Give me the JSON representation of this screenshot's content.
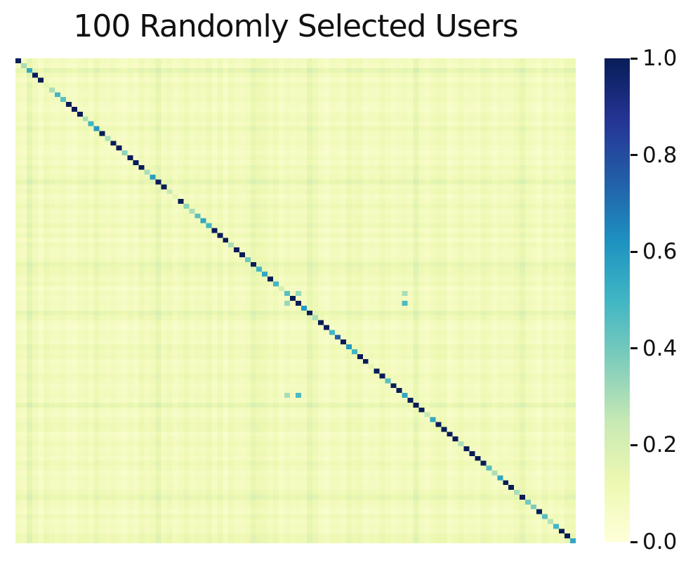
{
  "figure": {
    "background_color": "#ffffff"
  },
  "chart_data": {
    "type": "heatmap",
    "title": "100 Randomly Selected Users",
    "n": 100,
    "value_range": [
      0.0,
      1.0
    ],
    "colormap": "YlGnBu",
    "colormap_anchors": [
      [
        0.0,
        "#ffffd9"
      ],
      [
        0.125,
        "#edf8b1"
      ],
      [
        0.25,
        "#c7e9b4"
      ],
      [
        0.375,
        "#7fcdbb"
      ],
      [
        0.5,
        "#41b6c4"
      ],
      [
        0.625,
        "#1d91c0"
      ],
      [
        0.75,
        "#225ea8"
      ],
      [
        0.875,
        "#253494"
      ],
      [
        1.0,
        "#081d58"
      ]
    ],
    "colorbar": {
      "tick_labels": [
        "1.0",
        "0.8",
        "0.6",
        "0.4",
        "0.2",
        "0.0"
      ],
      "tick_values": [
        1.0,
        0.8,
        0.6,
        0.4,
        0.2,
        0.0
      ],
      "position": "right"
    },
    "matrix_model": {
      "rule": "value(i,j) = diagonal[i] if i==j else clamp01(base[i]+base[j]); extra_points override",
      "diagonal": [
        1.0,
        0.3,
        0.55,
        1.0,
        1.0,
        0.15,
        0.3,
        0.5,
        0.45,
        1.0,
        1.0,
        1.0,
        0.3,
        0.5,
        0.6,
        1.0,
        0.3,
        1.0,
        1.0,
        0.35,
        1.0,
        1.0,
        1.0,
        0.3,
        0.58,
        1.0,
        1.0,
        0.25,
        0.15,
        1.0,
        0.35,
        0.3,
        0.45,
        0.55,
        0.5,
        1.0,
        1.0,
        1.0,
        0.3,
        1.0,
        1.0,
        0.4,
        1.0,
        0.5,
        0.55,
        1.0,
        0.5,
        0.2,
        0.45,
        1.0,
        1.0,
        0.6,
        1.0,
        0.3,
        1.0,
        1.0,
        0.5,
        0.75,
        1.0,
        0.6,
        0.5,
        1.0,
        1.0,
        0.15,
        1.0,
        1.0,
        0.45,
        1.0,
        1.0,
        0.55,
        1.0,
        1.0,
        1.0,
        0.25,
        0.55,
        1.0,
        1.0,
        1.0,
        1.0,
        0.3,
        1.0,
        1.0,
        1.0,
        1.0,
        0.45,
        0.3,
        0.55,
        1.0,
        1.0,
        0.3,
        1.0,
        0.4,
        0.38,
        1.0,
        0.45,
        0.28,
        0.5,
        1.0,
        1.0,
        0.55
      ],
      "base": [
        0.045,
        0.03,
        0.105,
        0.055,
        0.02,
        0.06,
        0.04,
        0.035,
        0.05,
        0.03,
        0.02,
        0.045,
        0.055,
        0.03,
        0.075,
        0.04,
        0.035,
        0.05,
        0.03,
        0.02,
        0.045,
        0.025,
        0.065,
        0.04,
        0.055,
        0.1,
        0.04,
        0.06,
        0.025,
        0.045,
        0.07,
        0.035,
        0.05,
        0.04,
        0.07,
        0.03,
        0.065,
        0.02,
        0.06,
        0.04,
        0.035,
        0.05,
        0.095,
        0.07,
        0.065,
        0.04,
        0.06,
        0.02,
        0.05,
        0.035,
        0.045,
        0.04,
        0.1,
        0.065,
        0.035,
        0.015,
        0.045,
        0.04,
        0.03,
        0.07,
        0.05,
        0.06,
        0.025,
        0.04,
        0.035,
        0.065,
        0.045,
        0.03,
        0.04,
        0.05,
        0.035,
        0.1,
        0.04,
        0.025,
        0.05,
        0.065,
        0.06,
        0.02,
        0.04,
        0.06,
        0.035,
        0.045,
        0.03,
        0.065,
        0.05,
        0.025,
        0.045,
        0.035,
        0.04,
        0.06,
        0.095,
        0.05,
        0.04,
        0.02,
        0.06,
        0.03,
        0.045,
        0.035,
        0.07,
        0.07
      ],
      "extra_points": [
        {
          "row": 48,
          "col": 50,
          "value": 0.33,
          "mirrored": true
        },
        {
          "row": 48,
          "col": 69,
          "value": 0.3,
          "mirrored": true
        },
        {
          "row": 50,
          "col": 69,
          "value": 0.48,
          "mirrored": true
        }
      ]
    }
  }
}
